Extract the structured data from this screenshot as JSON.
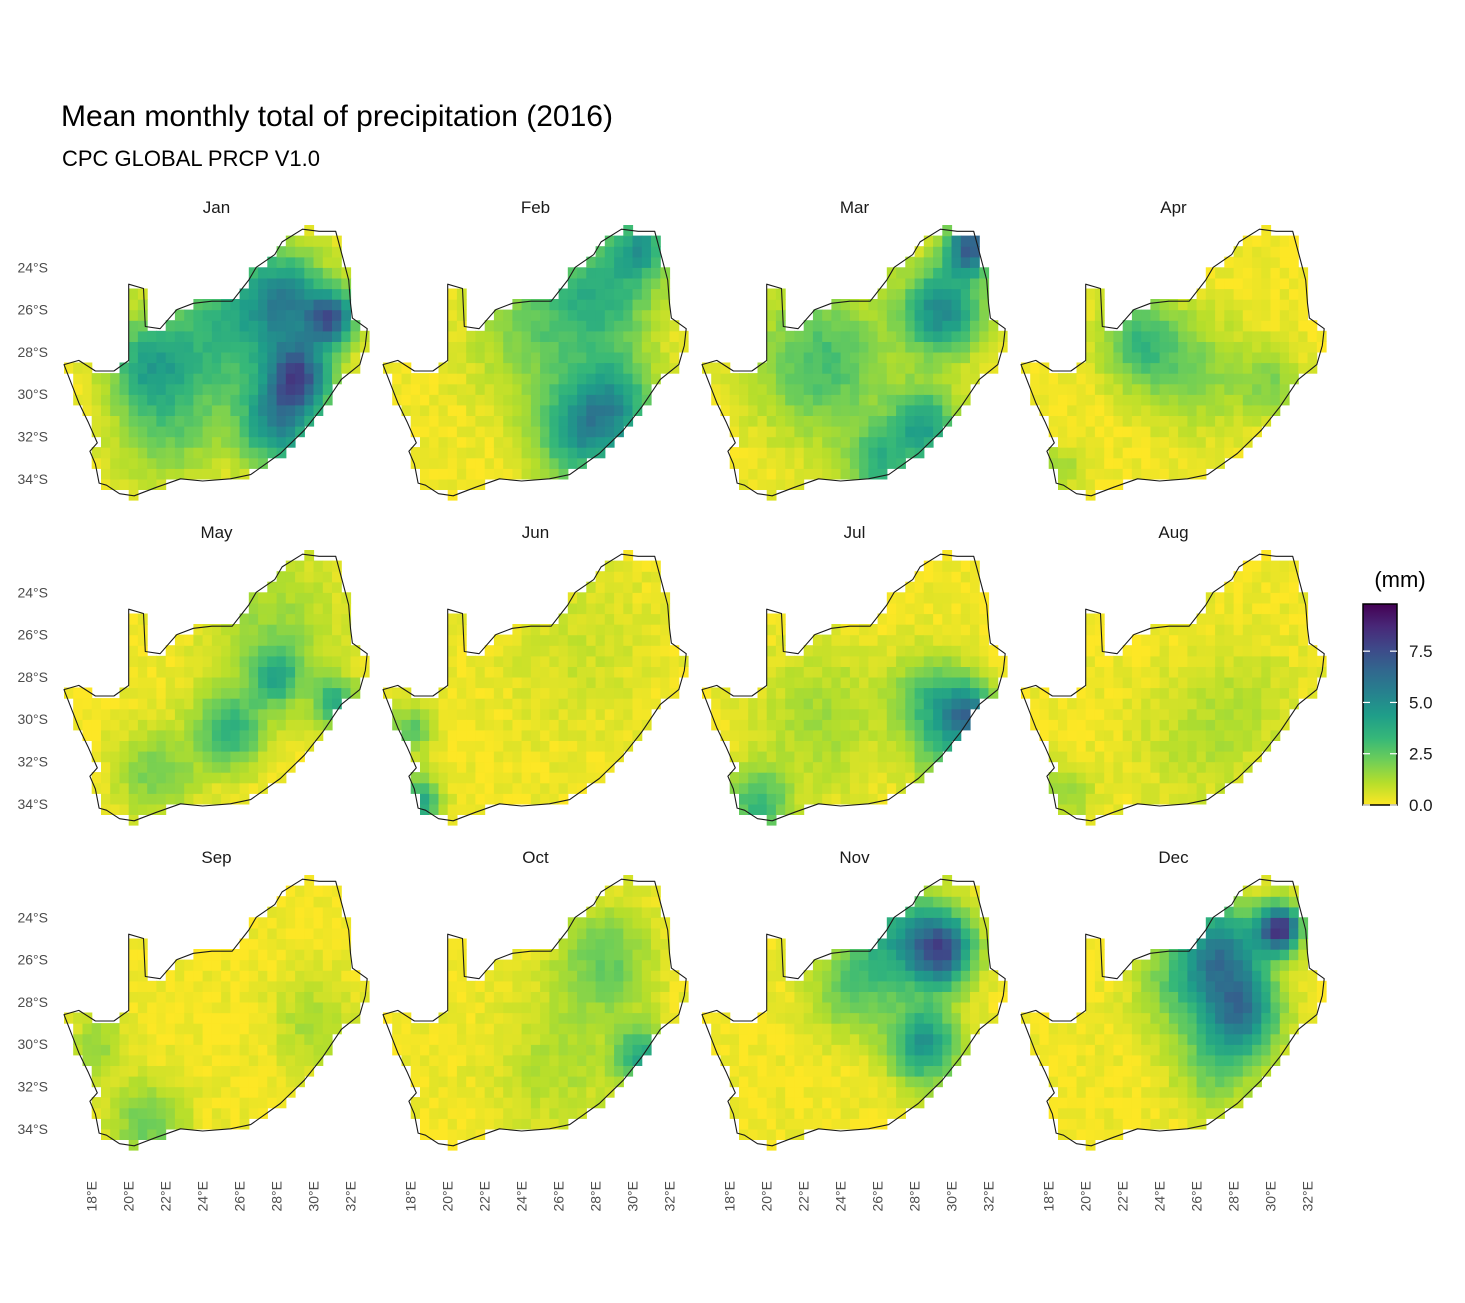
{
  "title": "Mean monthly total of precipitation (2016)",
  "subtitle": "CPC GLOBAL PRCP V1.0",
  "chart_data": {
    "type": "heatmap",
    "facets": [
      "Jan",
      "Feb",
      "Mar",
      "Apr",
      "May",
      "Jun",
      "Jul",
      "Aug",
      "Sep",
      "Oct",
      "Nov",
      "Dec"
    ],
    "y_ticks": [
      {
        "value": -24,
        "label": "24°S"
      },
      {
        "value": -26,
        "label": "26°S"
      },
      {
        "value": -28,
        "label": "28°S"
      },
      {
        "value": -30,
        "label": "30°S"
      },
      {
        "value": -32,
        "label": "32°S"
      },
      {
        "value": -34,
        "label": "34°S"
      }
    ],
    "x_ticks": [
      {
        "value": 18,
        "label": "18°E"
      },
      {
        "value": 20,
        "label": "20°E"
      },
      {
        "value": 22,
        "label": "22°E"
      },
      {
        "value": 24,
        "label": "24°E"
      },
      {
        "value": 26,
        "label": "26°E"
      },
      {
        "value": 28,
        "label": "28°E"
      },
      {
        "value": 30,
        "label": "30°E"
      },
      {
        "value": 32,
        "label": "32°E"
      }
    ],
    "xlim": [
      16.5,
      33.0
    ],
    "ylim": [
      -35.0,
      -22.0
    ],
    "grid": false,
    "legend": {
      "title": "(mm)",
      "position": "right",
      "range": [
        0,
        9.8
      ],
      "ticks": [
        {
          "value": 0,
          "label": "0.0"
        },
        {
          "value": 2.5,
          "label": "2.5"
        },
        {
          "value": 5,
          "label": "5.0"
        },
        {
          "value": 7.5,
          "label": "7.5"
        }
      ],
      "colormap": [
        "#fde725",
        "#b5de2b",
        "#6ece58",
        "#35b779",
        "#1f9e89",
        "#26828e",
        "#31688e",
        "#3e4989",
        "#482878",
        "#440154"
      ]
    },
    "outline_color": "#1a1a1a",
    "monthly_patterns": {
      "Jan": [
        {
          "lon": 29.2,
          "lat": -29.2,
          "value": 6.5,
          "sigma": 1.2
        },
        {
          "lon": 31.0,
          "lat": -26.4,
          "value": 6.0,
          "sigma": 0.9
        },
        {
          "lon": 28.0,
          "lat": -31.5,
          "value": 4.5,
          "sigma": 1.4
        },
        {
          "lon": 28.5,
          "lat": -25.5,
          "value": 4.5,
          "sigma": 1.6
        },
        {
          "lon": 25.0,
          "lat": -27.0,
          "value": 3.0,
          "sigma": 2.5
        },
        {
          "lon": 21.0,
          "lat": -28.5,
          "value": 3.0,
          "sigma": 1.5
        },
        {
          "lon": 22.0,
          "lat": -31.5,
          "value": 2.0,
          "sigma": 2.0
        }
      ],
      "Feb": [
        {
          "lon": 29.0,
          "lat": -30.5,
          "value": 4.0,
          "sigma": 1.6
        },
        {
          "lon": 27.0,
          "lat": -32.0,
          "value": 3.5,
          "sigma": 1.6
        },
        {
          "lon": 28.5,
          "lat": -25.0,
          "value": 3.0,
          "sigma": 2.0
        },
        {
          "lon": 30.5,
          "lat": -23.0,
          "value": 3.5,
          "sigma": 1.0
        },
        {
          "lon": 25.0,
          "lat": -27.0,
          "value": 2.0,
          "sigma": 2.5
        }
      ],
      "Mar": [
        {
          "lon": 31.0,
          "lat": -23.0,
          "value": 6.5,
          "sigma": 0.9
        },
        {
          "lon": 29.5,
          "lat": -26.0,
          "value": 5.0,
          "sigma": 1.5
        },
        {
          "lon": 28.5,
          "lat": -31.5,
          "value": 4.0,
          "sigma": 1.3
        },
        {
          "lon": 26.0,
          "lat": -33.3,
          "value": 3.0,
          "sigma": 1.2
        },
        {
          "lon": 23.0,
          "lat": -28.5,
          "value": 2.8,
          "sigma": 2.5
        }
      ],
      "Apr": [
        {
          "lon": 23.0,
          "lat": -27.5,
          "value": 2.8,
          "sigma": 1.5
        },
        {
          "lon": 26.0,
          "lat": -29.0,
          "value": 1.6,
          "sigma": 2.0
        },
        {
          "lon": 30.0,
          "lat": -29.5,
          "value": 1.6,
          "sigma": 1.2
        },
        {
          "lon": 18.5,
          "lat": -33.5,
          "value": 1.5,
          "sigma": 0.8
        }
      ],
      "May": [
        {
          "lon": 25.5,
          "lat": -30.5,
          "value": 3.2,
          "sigma": 1.3
        },
        {
          "lon": 31.2,
          "lat": -29.2,
          "value": 3.5,
          "sigma": 0.8
        },
        {
          "lon": 28.0,
          "lat": -28.0,
          "value": 3.0,
          "sigma": 0.9
        },
        {
          "lon": 21.5,
          "lat": -32.5,
          "value": 2.0,
          "sigma": 1.5
        },
        {
          "lon": 28.0,
          "lat": -26.0,
          "value": 1.5,
          "sigma": 2.5
        }
      ],
      "Jun": [
        {
          "lon": 18.5,
          "lat": -33.8,
          "value": 4.0,
          "sigma": 0.8
        },
        {
          "lon": 18.0,
          "lat": -30.5,
          "value": 2.5,
          "sigma": 0.8
        },
        {
          "lon": 27.0,
          "lat": -26.5,
          "value": 0.6,
          "sigma": 3.0
        }
      ],
      "Jul": [
        {
          "lon": 31.0,
          "lat": -29.8,
          "value": 5.0,
          "sigma": 1.0
        },
        {
          "lon": 29.0,
          "lat": -29.0,
          "value": 3.0,
          "sigma": 1.4
        },
        {
          "lon": 19.5,
          "lat": -34.0,
          "value": 3.0,
          "sigma": 1.2
        },
        {
          "lon": 23.0,
          "lat": -30.0,
          "value": 1.2,
          "sigma": 2.5
        },
        {
          "lon": 29.5,
          "lat": -31.5,
          "value": 2.0,
          "sigma": 1.2
        }
      ],
      "Aug": [
        {
          "lon": 19.0,
          "lat": -33.5,
          "value": 1.5,
          "sigma": 1.0
        },
        {
          "lon": 26.0,
          "lat": -31.0,
          "value": 0.8,
          "sigma": 2.5
        },
        {
          "lon": 29.0,
          "lat": -29.0,
          "value": 0.6,
          "sigma": 2.0
        }
      ],
      "Sep": [
        {
          "lon": 21.0,
          "lat": -33.8,
          "value": 2.0,
          "sigma": 1.5
        },
        {
          "lon": 18.3,
          "lat": -30.0,
          "value": 1.5,
          "sigma": 1.0
        },
        {
          "lon": 30.0,
          "lat": -29.0,
          "value": 1.2,
          "sigma": 1.5
        }
      ],
      "Oct": [
        {
          "lon": 30.5,
          "lat": -30.5,
          "value": 3.5,
          "sigma": 1.0
        },
        {
          "lon": 28.5,
          "lat": -26.0,
          "value": 2.2,
          "sigma": 1.8
        },
        {
          "lon": 26.0,
          "lat": -31.0,
          "value": 1.0,
          "sigma": 2.5
        }
      ],
      "Nov": [
        {
          "lon": 29.5,
          "lat": -25.5,
          "value": 6.5,
          "sigma": 1.2
        },
        {
          "lon": 28.5,
          "lat": -30.0,
          "value": 4.5,
          "sigma": 1.3
        },
        {
          "lon": 27.0,
          "lat": -25.0,
          "value": 3.5,
          "sigma": 1.8
        },
        {
          "lon": 24.5,
          "lat": -27.5,
          "value": 2.0,
          "sigma": 1.5
        }
      ],
      "Dec": [
        {
          "lon": 30.5,
          "lat": -24.5,
          "value": 8.0,
          "sigma": 0.8
        },
        {
          "lon": 28.5,
          "lat": -28.5,
          "value": 5.0,
          "sigma": 1.4
        },
        {
          "lon": 27.5,
          "lat": -25.5,
          "value": 4.5,
          "sigma": 1.5
        },
        {
          "lon": 25.5,
          "lat": -27.0,
          "value": 2.5,
          "sigma": 1.8
        },
        {
          "lon": 27.0,
          "lat": -31.0,
          "value": 2.0,
          "sigma": 1.5
        }
      ]
    },
    "country_outline": [
      [
        16.5,
        -28.6
      ],
      [
        17.3,
        -28.4
      ],
      [
        18.2,
        -28.9
      ],
      [
        19.2,
        -28.9
      ],
      [
        20.0,
        -28.4
      ],
      [
        20.0,
        -24.8
      ],
      [
        20.8,
        -25.0
      ],
      [
        20.9,
        -26.8
      ],
      [
        21.7,
        -26.9
      ],
      [
        22.6,
        -26.0
      ],
      [
        23.5,
        -25.7
      ],
      [
        24.5,
        -25.6
      ],
      [
        25.6,
        -25.6
      ],
      [
        26.5,
        -24.6
      ],
      [
        26.9,
        -24.0
      ],
      [
        27.9,
        -23.4
      ],
      [
        28.3,
        -22.8
      ],
      [
        29.4,
        -22.2
      ],
      [
        30.3,
        -22.3
      ],
      [
        31.2,
        -22.3
      ],
      [
        31.6,
        -23.6
      ],
      [
        31.9,
        -24.6
      ],
      [
        32.0,
        -25.7
      ],
      [
        32.1,
        -26.4
      ],
      [
        32.9,
        -26.9
      ],
      [
        32.8,
        -27.7
      ],
      [
        32.5,
        -28.6
      ],
      [
        31.5,
        -29.3
      ],
      [
        30.5,
        -30.6
      ],
      [
        29.5,
        -31.7
      ],
      [
        28.2,
        -32.8
      ],
      [
        26.6,
        -33.8
      ],
      [
        25.5,
        -34.0
      ],
      [
        24.0,
        -34.1
      ],
      [
        22.8,
        -34.0
      ],
      [
        21.5,
        -34.4
      ],
      [
        20.3,
        -34.8
      ],
      [
        19.5,
        -34.7
      ],
      [
        18.8,
        -34.3
      ],
      [
        18.4,
        -34.2
      ],
      [
        18.2,
        -33.3
      ],
      [
        17.9,
        -32.7
      ],
      [
        18.3,
        -32.3
      ],
      [
        17.8,
        -31.3
      ],
      [
        17.3,
        -30.4
      ],
      [
        16.9,
        -29.5
      ],
      [
        16.5,
        -28.6
      ]
    ]
  }
}
